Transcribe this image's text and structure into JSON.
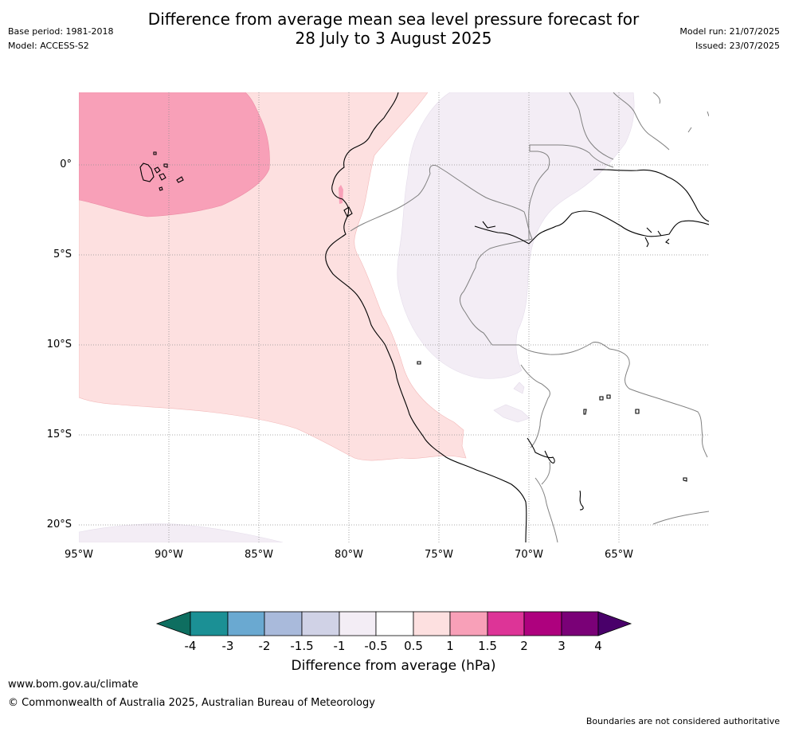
{
  "header": {
    "title_line1": "Difference from average mean sea level pressure forecast for",
    "title_line2": "28 July to 3 August 2025",
    "base_period": "Base period: 1981-2018",
    "model": "Model: ACCESS-S2",
    "model_run": "Model run: 21/07/2025",
    "issued": "Issued: 23/07/2025"
  },
  "map": {
    "lat_labels": [
      "0°",
      "5°S",
      "10°S",
      "15°S",
      "20°S"
    ],
    "lon_labels": [
      "95°W",
      "90°W",
      "85°W",
      "80°W",
      "75°W",
      "70°W",
      "65°W"
    ],
    "colors": {
      "pink_strong": "#f8a0b8",
      "pink_light": "#fde0e0",
      "lavender": "#f3edf5",
      "coast": "#000000",
      "border": "#808080",
      "grid": "#808080"
    }
  },
  "colorbar": {
    "title": "Difference from average (hPa)",
    "tick_labels": [
      "-4",
      "-3",
      "-2",
      "-1.5",
      "-1",
      "-0.5",
      "0.5",
      "1",
      "1.5",
      "2",
      "3",
      "4"
    ],
    "colors": [
      "#0e6e60",
      "#1b9095",
      "#6aa9d1",
      "#a9badb",
      "#d0d2e6",
      "#f3edf5",
      "#ffffff",
      "#fde0e0",
      "#f8a0b8",
      "#dd3497",
      "#ae017e",
      "#7a0177",
      "#49006a"
    ]
  },
  "footer": {
    "website": "www.bom.gov.au/climate",
    "copyright": "© Commonwealth of Australia 2025, Australian Bureau of Meteorology",
    "disclaimer": "Boundaries are not considered authoritative"
  }
}
